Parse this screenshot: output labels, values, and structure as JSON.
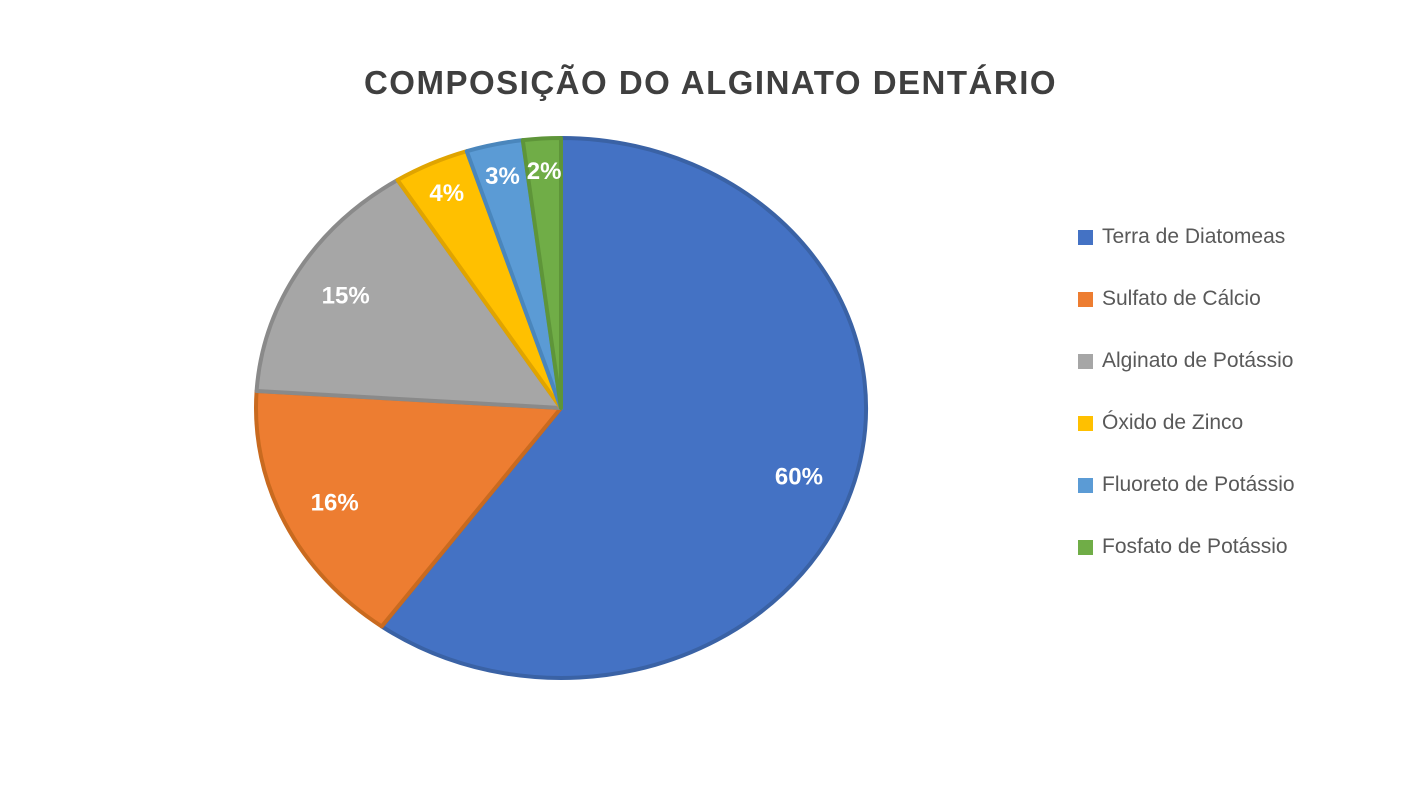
{
  "chart_data": {
    "type": "pie",
    "title": "COMPOSIÇÃO DO ALGINATO DENTÁRIO",
    "legend_position": "right",
    "direction": "clockwise",
    "start_angle_deg": 0,
    "total": 100,
    "slices": [
      {
        "label": "Terra de Diatomeas",
        "value": 60,
        "percent_label": "60%",
        "color": "#4472C4",
        "border_color": "#3A62A5"
      },
      {
        "label": "Sulfato de Cálcio",
        "value": 16,
        "percent_label": "16%",
        "color": "#ED7D31",
        "border_color": "#C96A1F"
      },
      {
        "label": "Alginato de Potássio",
        "value": 15,
        "percent_label": "15%",
        "color": "#A6A6A6",
        "border_color": "#8A8A8A"
      },
      {
        "label": "Óxido de Zinco",
        "value": 4,
        "percent_label": "4%",
        "color": "#FFC000",
        "border_color": "#E0A400"
      },
      {
        "label": "Fluoreto de Potássio",
        "value": 3,
        "percent_label": "3%",
        "color": "#5B9BD5",
        "border_color": "#4A86BC"
      },
      {
        "label": "Fosfato de Potássio",
        "value": 2,
        "percent_label": "2%",
        "color": "#70AD47",
        "border_color": "#5E9539"
      }
    ]
  },
  "style": {
    "background": "#FFFFFF",
    "title_color": "#3F3F3F",
    "legend_text_color": "#595959",
    "slice_label_color": "#FFFFFF"
  }
}
